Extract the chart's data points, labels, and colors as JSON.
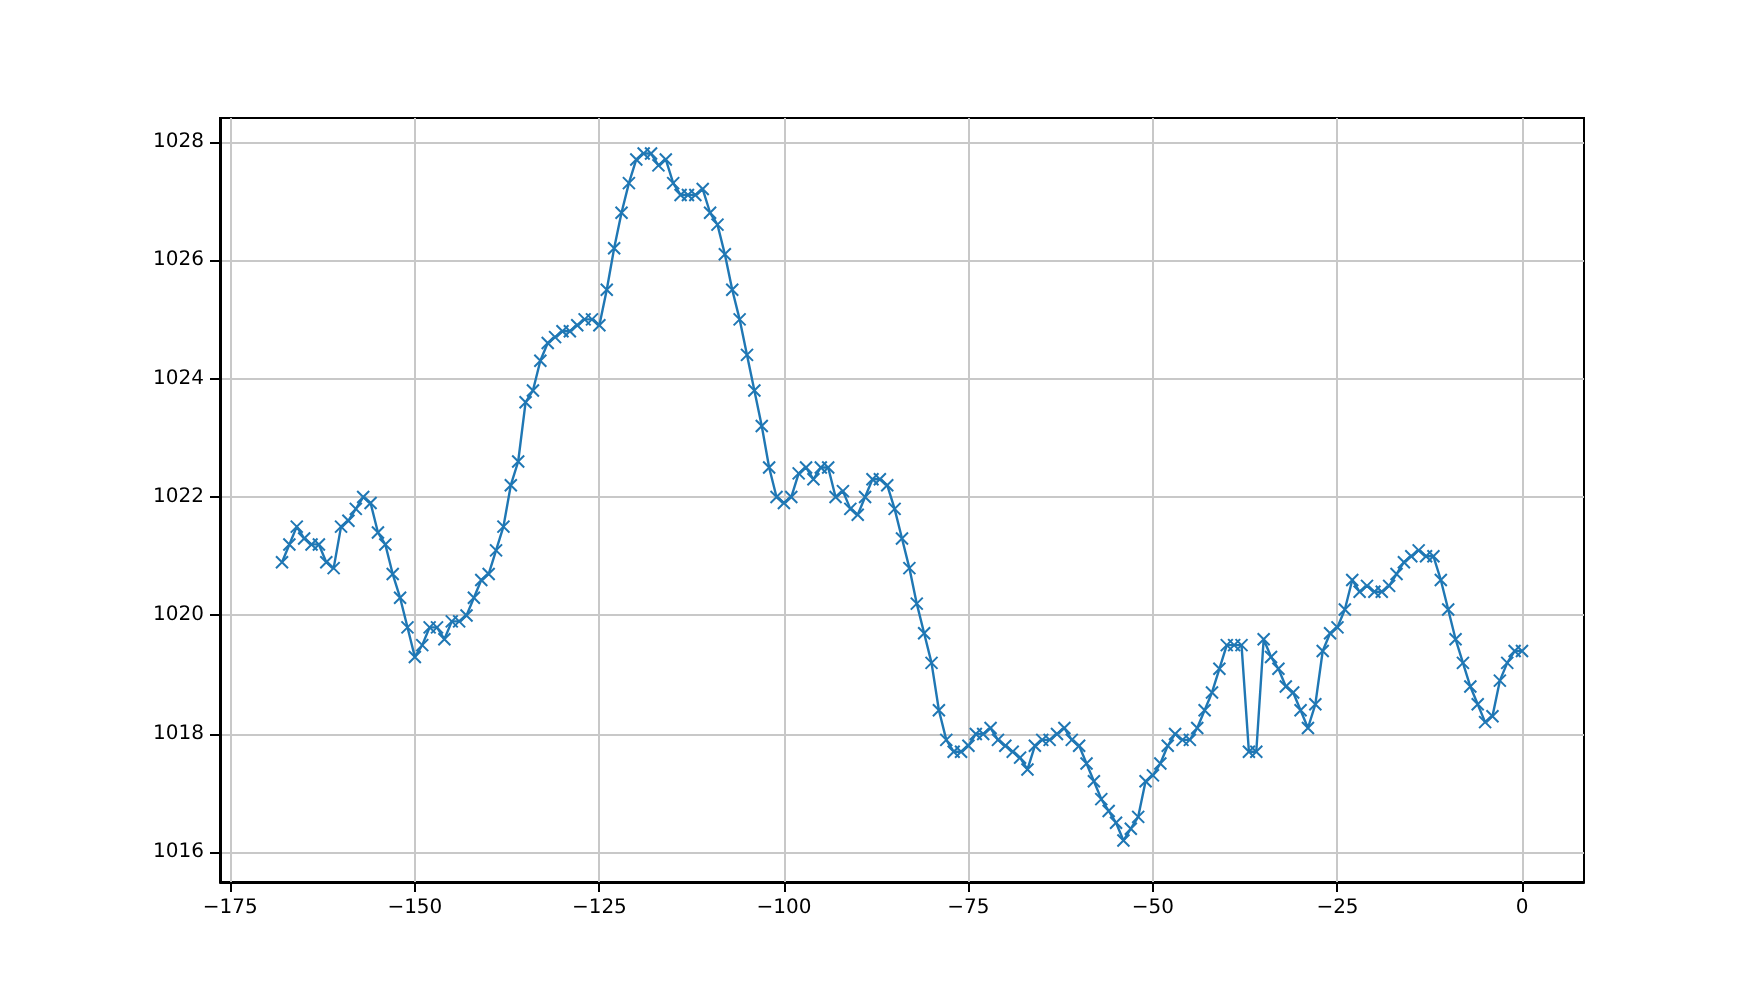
{
  "chart_data": {
    "type": "line",
    "x": [
      -168,
      -167,
      -166,
      -165,
      -164,
      -163,
      -162,
      -161,
      -160,
      -159,
      -158,
      -157,
      -156,
      -155,
      -154,
      -153,
      -152,
      -151,
      -150,
      -149,
      -148,
      -147,
      -146,
      -145,
      -144,
      -143,
      -142,
      -141,
      -140,
      -139,
      -138,
      -137,
      -136,
      -135,
      -134,
      -133,
      -132,
      -131,
      -130,
      -129,
      -128,
      -127,
      -126,
      -125,
      -124,
      -123,
      -122,
      -121,
      -120,
      -119,
      -118,
      -117,
      -116,
      -115,
      -114,
      -113,
      -112,
      -111,
      -110,
      -109,
      -108,
      -107,
      -106,
      -105,
      -104,
      -103,
      -102,
      -101,
      -100,
      -99,
      -98,
      -97,
      -96,
      -95,
      -94,
      -93,
      -92,
      -91,
      -90,
      -89,
      -88,
      -87,
      -86,
      -85,
      -84,
      -83,
      -82,
      -81,
      -80,
      -79,
      -78,
      -77,
      -76,
      -75,
      -74,
      -73,
      -72,
      -71,
      -70,
      -69,
      -68,
      -67,
      -66,
      -65,
      -64,
      -63,
      -62,
      -61,
      -60,
      -59,
      -58,
      -57,
      -56,
      -55,
      -54,
      -53,
      -52,
      -51,
      -50,
      -49,
      -48,
      -47,
      -46,
      -45,
      -44,
      -43,
      -42,
      -41,
      -40,
      -39,
      -38,
      -37,
      -36,
      -35,
      -34,
      -33,
      -32,
      -31,
      -30,
      -29,
      -28,
      -27,
      -26,
      -25,
      -24,
      -23,
      -22,
      -21,
      -20,
      -19,
      -18,
      -17,
      -16,
      -15,
      -14,
      -13,
      -12,
      -11,
      -10,
      -9,
      -8,
      -7,
      -6,
      -5,
      -4,
      -3,
      -2,
      -1,
      0
    ],
    "series": [
      {
        "color": "#1f77b4",
        "values": [
          1020.9,
          1021.2,
          1021.5,
          1021.3,
          1021.2,
          1021.2,
          1020.9,
          1020.8,
          1021.5,
          1021.6,
          1021.8,
          1022.0,
          1021.9,
          1021.4,
          1021.2,
          1020.7,
          1020.3,
          1019.8,
          1019.3,
          1019.5,
          1019.8,
          1019.8,
          1019.6,
          1019.9,
          1019.9,
          1020.0,
          1020.3,
          1020.6,
          1020.7,
          1021.1,
          1021.5,
          1022.2,
          1022.6,
          1023.6,
          1023.8,
          1024.3,
          1024.6,
          1024.7,
          1024.8,
          1024.8,
          1024.9,
          1025.0,
          1025.0,
          1024.9,
          1025.5,
          1026.2,
          1026.8,
          1027.3,
          1027.7,
          1027.8,
          1027.8,
          1027.6,
          1027.7,
          1027.3,
          1027.1,
          1027.1,
          1027.1,
          1027.2,
          1026.8,
          1026.6,
          1026.1,
          1025.5,
          1025.0,
          1024.4,
          1023.8,
          1023.2,
          1022.5,
          1022.0,
          1021.9,
          1022.0,
          1022.4,
          1022.5,
          1022.3,
          1022.5,
          1022.5,
          1022.0,
          1022.1,
          1021.8,
          1021.7,
          1022.0,
          1022.3,
          1022.3,
          1022.2,
          1021.8,
          1021.3,
          1020.8,
          1020.2,
          1019.7,
          1019.2,
          1018.4,
          1017.9,
          1017.7,
          1017.7,
          1017.8,
          1018.0,
          1018.0,
          1018.1,
          1017.9,
          1017.8,
          1017.7,
          1017.6,
          1017.4,
          1017.8,
          1017.9,
          1017.9,
          1018.0,
          1018.1,
          1017.9,
          1017.8,
          1017.5,
          1017.2,
          1016.9,
          1016.7,
          1016.5,
          1016.2,
          1016.4,
          1016.6,
          1017.2,
          1017.3,
          1017.5,
          1017.8,
          1018.0,
          1017.9,
          1017.9,
          1018.1,
          1018.4,
          1018.7,
          1019.1,
          1019.5,
          1019.5,
          1019.5,
          1017.7,
          1017.7,
          1019.6,
          1019.3,
          1019.1,
          1018.8,
          1018.7,
          1018.4,
          1018.1,
          1018.5,
          1019.4,
          1019.7,
          1019.8,
          1020.1,
          1020.6,
          1020.4,
          1020.5,
          1020.4,
          1020.4,
          1020.5,
          1020.7,
          1020.9,
          1021.0,
          1021.1,
          1021.0,
          1021.0,
          1020.6,
          1020.1,
          1019.6,
          1019.2,
          1018.8,
          1018.5,
          1018.2,
          1018.3,
          1018.9,
          1019.2,
          1019.4,
          1019.4
        ]
      }
    ],
    "xlim": [
      -176.4,
      8.4
    ],
    "xticks": [
      -175,
      -150,
      -125,
      -100,
      -75,
      -50,
      -25,
      0
    ],
    "ylim": [
      1015.5,
      1028.4
    ],
    "yticks": [
      1016,
      1018,
      1020,
      1022,
      1024,
      1026,
      1028
    ],
    "grid": true,
    "marker": "cross",
    "line_style": "solid"
  }
}
